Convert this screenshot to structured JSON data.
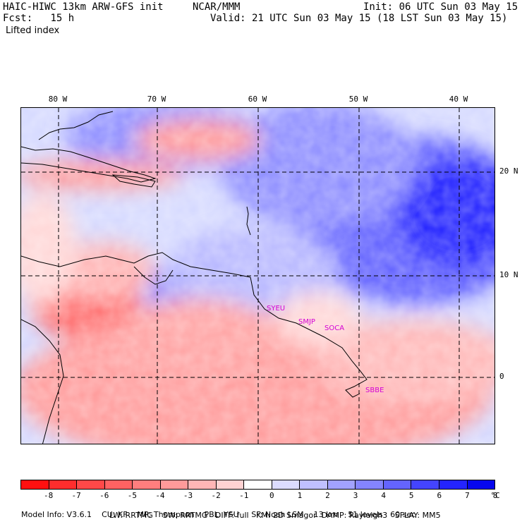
{
  "header": {
    "model_title": "HAIC-HIWC 13km ARW-GFS init",
    "org": "NCAR/MMM",
    "fcst_label": "Fcst:",
    "fcst_value": "15 h",
    "init": "Init: 06 UTC Sun 03 May 15",
    "valid": "Valid: 21 UTC Sun 03 May 15 (18 LST Sun 03 May 15)",
    "field": "Lifted index"
  },
  "map": {
    "lon_labels": [
      "80 W",
      "70 W",
      "60 W",
      "50 W",
      "40 W"
    ],
    "lat_labels": [
      "20 N",
      "10 N",
      "0"
    ],
    "stations": [
      "SYEU",
      "SMJP",
      "SOCA",
      "SBBE"
    ]
  },
  "colorbar": {
    "labels": [
      "-8",
      "-7",
      "-6",
      "-5",
      "-4",
      "-3",
      "-2",
      "-1",
      "0",
      "1",
      "2",
      "3",
      "4",
      "5",
      "6",
      "7",
      "8"
    ],
    "unit": "°C",
    "colors": [
      "#ff1010",
      "#ff2d2d",
      "#ff4848",
      "#ff6262",
      "#ff7e7e",
      "#ff9a9a",
      "#ffb6b6",
      "#ffd2d2",
      "#ffffff",
      "#dcdcff",
      "#c0c0ff",
      "#a2a2ff",
      "#8484ff",
      "#6464ff",
      "#4444ff",
      "#2424ff",
      "#0606ee"
    ]
  },
  "model_info": {
    "line1": [
      "Model Info: V3.6.1",
      "CU: KF",
      "MP: Thompson",
      "PBL: YSU",
      "SF: Noah LSM",
      "13 km",
      "51 levels",
      "60 sec"
    ],
    "line2": [
      "LW: RRTMG",
      "SW: RRTMG",
      "DIFF: full",
      "KM: 2D Smagor",
      "DAMP: Rayleigh3",
      "SFLAY: MM5"
    ]
  }
}
